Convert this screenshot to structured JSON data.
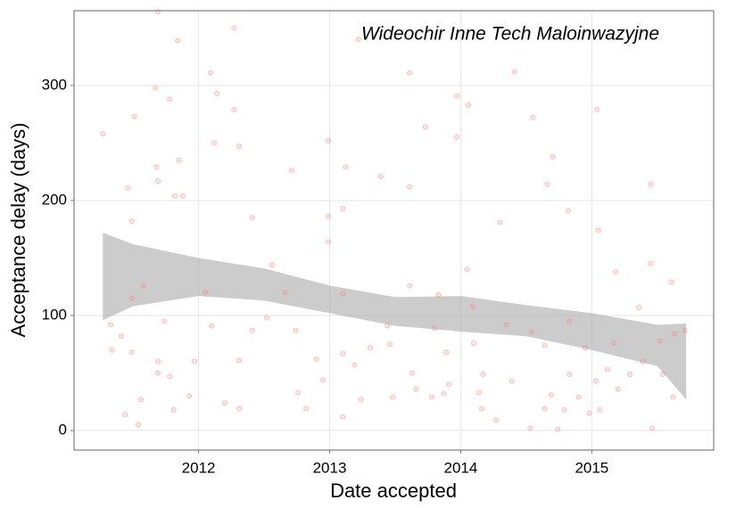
{
  "chart_data": {
    "type": "scatter",
    "annotation": "Wideochir Inne Tech Maloinwazyjne",
    "xlabel": "Date accepted",
    "ylabel": "Acceptance delay (days)",
    "xlim": [
      2011.05,
      2015.93
    ],
    "xticks": [
      2012,
      2013,
      2014,
      2015
    ],
    "ylim": [
      -17,
      365
    ],
    "yticks": [
      0,
      100,
      200,
      300
    ],
    "grid": true,
    "color": "#f8766d",
    "x": [
      2011.27,
      2011.46,
      2011.51,
      2011.49,
      2011.69,
      2011.67,
      2011.68,
      2011.69,
      2011.78,
      2011.84,
      2011.85,
      2011.88,
      2011.82,
      2012.09,
      2012.14,
      2012.12,
      2012.27,
      2012.27,
      2012.31,
      2012.71,
      2012.99,
      2013.12,
      2013.39,
      2013.22,
      2013.61,
      2013.61,
      2013.73,
      2013.97,
      2013.97,
      2014.06,
      2014.41,
      2014.55,
      2014.66,
      2014.7,
      2015.04,
      2015.45,
      2014.82,
      2015.05,
      2011.33,
      2011.41,
      2011.34,
      2011.49,
      2011.44,
      2011.56,
      2011.54,
      2011.58,
      2011.49,
      2011.74,
      2011.69,
      2011.69,
      2011.78,
      2011.81,
      2011.93,
      2011.97,
      2012.05,
      2012.1,
      2012.2,
      2012.31,
      2012.31,
      2012.41,
      2012.52,
      2012.41,
      2012.56,
      2012.66,
      2012.74,
      2012.76,
      2012.82,
      2012.9,
      2012.95,
      2012.99,
      2012.99,
      2013.1,
      2013.1,
      2013.1,
      2013.1,
      2013.19,
      2013.24,
      2013.31,
      2013.44,
      2013.48,
      2013.46,
      2013.61,
      2013.63,
      2013.66,
      2013.78,
      2013.8,
      2013.89,
      2013.83,
      2013.87,
      2013.91,
      2014.05,
      2014.09,
      2014.1,
      2014.14,
      2014.17,
      2014.16,
      2014.27,
      2014.3,
      2014.35,
      2014.39,
      2014.54,
      2014.53,
      2014.64,
      2014.64,
      2014.69,
      2014.74,
      2014.79,
      2014.83,
      2014.83,
      2014.9,
      2014.95,
      2014.98,
      2015.03,
      2015.06,
      2015.12,
      2015.17,
      2015.18,
      2015.2,
      2015.29,
      2015.36,
      2015.39,
      2015.45,
      2015.46,
      2015.52,
      2015.54,
      2015.61,
      2015.62,
      2015.71,
      2015.63
    ],
    "values": [
      258,
      211,
      273,
      182,
      364,
      298,
      229,
      217,
      288,
      339,
      235,
      204,
      204,
      311,
      293,
      250,
      350,
      279,
      247,
      226,
      252,
      229,
      221,
      340,
      212,
      311,
      264,
      291,
      255,
      283,
      312,
      272,
      214,
      238,
      279,
      214,
      191,
      174,
      92,
      82,
      70,
      68,
      14,
      27,
      5,
      126,
      115,
      95,
      60,
      50,
      47,
      18,
      30,
      60,
      120,
      91,
      24,
      61,
      19,
      87,
      98,
      185,
      144,
      120,
      87,
      33,
      19,
      62,
      44,
      164,
      186,
      193,
      119,
      67,
      12,
      57,
      27,
      72,
      91,
      29,
      75,
      126,
      50,
      36,
      29,
      89,
      68,
      118,
      32,
      40,
      140,
      108,
      76,
      33,
      49,
      19,
      9,
      181,
      92,
      43,
      86,
      2,
      19,
      74,
      31,
      1,
      18,
      49,
      95,
      29,
      72,
      15,
      43,
      18,
      53,
      76,
      138,
      36,
      49,
      107,
      60,
      145,
      2,
      78,
      49,
      129,
      29,
      87,
      84
    ],
    "smooth": {
      "color": "#999999",
      "x": [
        2011.27,
        2011.5,
        2012,
        2012.5,
        2013,
        2013.5,
        2014,
        2014.5,
        2015,
        2015.5,
        2015.72
      ],
      "upper": [
        172,
        162,
        150,
        141,
        126,
        116,
        117,
        109,
        102,
        92,
        93
      ],
      "lower": [
        96,
        108,
        117,
        113,
        102,
        91,
        86,
        82,
        70,
        56,
        27
      ]
    }
  }
}
